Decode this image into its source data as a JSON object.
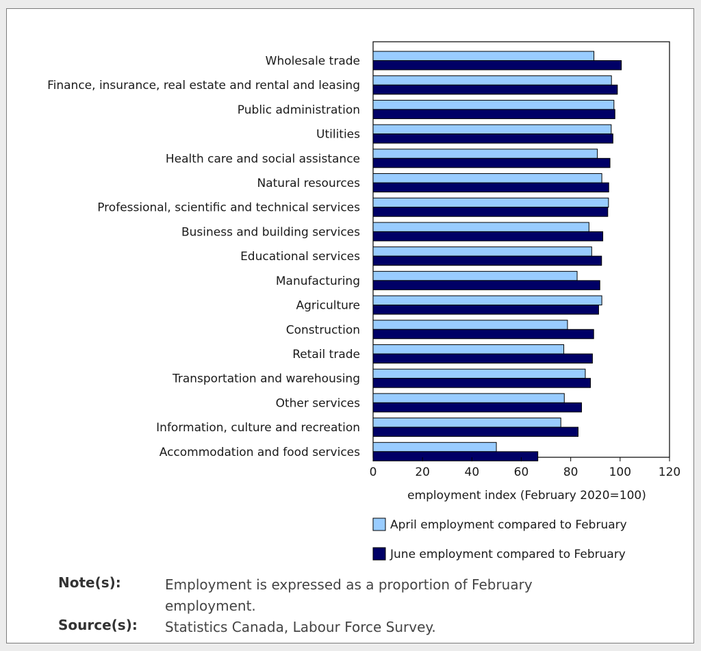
{
  "chart_data": {
    "type": "bar",
    "orientation": "horizontal",
    "categories": [
      "Wholesale trade",
      "Finance, insurance, real estate and rental and leasing",
      "Public administration",
      "Utilities",
      "Health care and social assistance",
      "Natural resources",
      "Professional, scientific and technical services",
      "Business and building services",
      "Educational services",
      "Manufacturing",
      "Agriculture",
      "Construction",
      "Retail trade",
      "Transportation and warehousing",
      "Other services",
      "Information, culture and recreation",
      "Accommodation and food services"
    ],
    "series": [
      {
        "name": "April employment compared to February",
        "color": "#99ccff",
        "values": [
          89.4,
          96.5,
          97.5,
          96.4,
          90.8,
          92.6,
          95.3,
          87.4,
          88.5,
          82.6,
          92.6,
          78.7,
          77.2,
          85.9,
          77.4,
          76.0,
          49.9
        ]
      },
      {
        "name": "June employment compared to February",
        "color": "#000066",
        "values": [
          100.5,
          98.9,
          97.9,
          97.1,
          95.9,
          95.4,
          95.0,
          93.0,
          92.5,
          91.8,
          91.3,
          89.3,
          88.8,
          88.0,
          84.4,
          83.0,
          66.7
        ]
      }
    ],
    "xlabel": "employment index (February 2020=100)",
    "xlim": [
      0,
      120
    ],
    "xticks": [
      "0",
      "20",
      "40",
      "60",
      "80",
      "100",
      "120"
    ],
    "grid": false,
    "legend_position": "bottom"
  },
  "notes": {
    "note_label": "Note(s):",
    "note_text": "Employment is expressed as a proportion of February employment.",
    "source_label": "Source(s):",
    "source_text": "Statistics Canada, Labour Force Survey."
  }
}
